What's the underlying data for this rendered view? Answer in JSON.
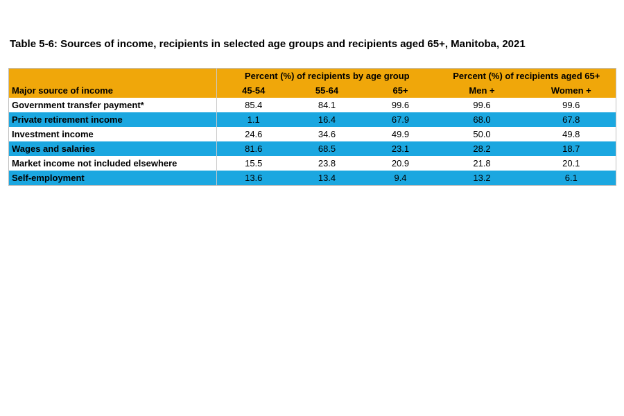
{
  "page": {
    "title": "Table 5-6: Sources of income, recipients in selected age groups and recipients aged 65+, Manitoba, 2021"
  },
  "table": {
    "group_headers": {
      "age_group": "Percent (%) of recipients by age group",
      "aged_65_plus": "Percent (%) of recipients aged 65+"
    },
    "column_headers": {
      "label": "Major source of income",
      "c1": "45-54",
      "c2": "55-64",
      "c3": "65+",
      "c4": "Men +",
      "c5": "Women +"
    },
    "rows": [
      {
        "label": "Government transfer payment*",
        "v1": "85.4",
        "v2": "84.1",
        "v3": "99.6",
        "v4": "99.6",
        "v5": "99.6"
      },
      {
        "label": "Private retirement income",
        "v1": "1.1",
        "v2": "16.4",
        "v3": "67.9",
        "v4": "68.0",
        "v5": "67.8"
      },
      {
        "label": "Investment income",
        "v1": "24.6",
        "v2": "34.6",
        "v3": "49.9",
        "v4": "50.0",
        "v5": "49.8"
      },
      {
        "label": "Wages and salaries",
        "v1": "81.6",
        "v2": "68.5",
        "v3": "23.1",
        "v4": "28.2",
        "v5": "18.7"
      },
      {
        "label": "Market income not included elsewhere",
        "v1": "15.5",
        "v2": "23.8",
        "v3": "20.9",
        "v4": "21.8",
        "v5": "20.1"
      },
      {
        "label": "Self-employment",
        "v1": "13.6",
        "v2": "13.4",
        "v3": "9.4",
        "v4": "13.2",
        "v5": "6.1"
      }
    ],
    "colors": {
      "header_bg": "#F0A70A",
      "alt_row_bg": "#1BA7E0",
      "row_bg": "#FFFFFF",
      "border": "#BFBFBF",
      "text": "#000000"
    }
  },
  "chart_data": {
    "type": "table",
    "title": "Table 5-6: Sources of income, recipients in selected age groups and recipients aged 65+, Manitoba, 2021",
    "columns": [
      "Major source of income",
      "45-54",
      "55-64",
      "65+",
      "Men +",
      "Women +"
    ],
    "column_groups": [
      {
        "label": "Percent (%) of recipients by age group",
        "columns": [
          "45-54",
          "55-64",
          "65+"
        ]
      },
      {
        "label": "Percent (%) of recipients aged 65+",
        "columns": [
          "Men +",
          "Women +"
        ]
      }
    ],
    "rows": [
      [
        "Government transfer payment*",
        85.4,
        84.1,
        99.6,
        99.6,
        99.6
      ],
      [
        "Private retirement income",
        1.1,
        16.4,
        67.9,
        68.0,
        67.8
      ],
      [
        "Investment income",
        24.6,
        34.6,
        49.9,
        50.0,
        49.8
      ],
      [
        "Wages and salaries",
        81.6,
        68.5,
        23.1,
        28.2,
        18.7
      ],
      [
        "Market income not included elsewhere",
        15.5,
        23.8,
        20.9,
        21.8,
        20.1
      ],
      [
        "Self-employment",
        13.6,
        13.4,
        9.4,
        13.2,
        6.1
      ]
    ]
  }
}
